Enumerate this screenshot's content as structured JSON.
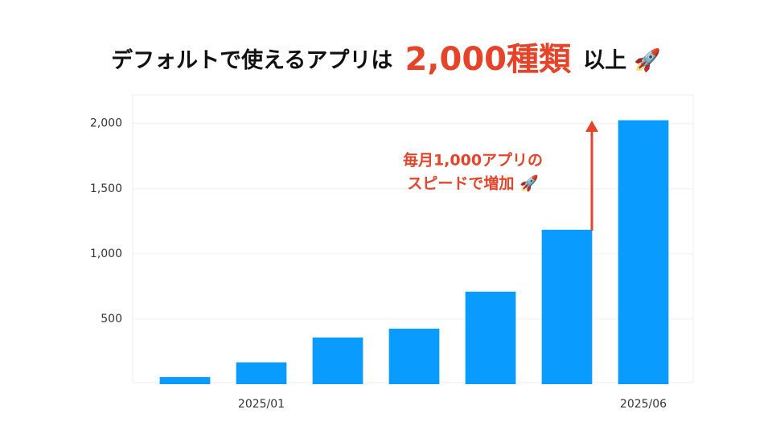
{
  "chart_data": {
    "type": "bar",
    "title": [
      "デフォルトで使えるアプリは",
      "2,000種類",
      "以上",
      "🚀"
    ],
    "annotation": [
      "毎月1,000アプリの",
      "スピードで増加 🚀"
    ],
    "categories": [
      null,
      "2025/01",
      null,
      null,
      null,
      null,
      "2025/06"
    ],
    "values": [
      55,
      167,
      358,
      426,
      710,
      1185,
      2025
    ],
    "color": "#0a9bff",
    "ylim": [
      0,
      2220
    ],
    "yticks": [
      {
        "value": 500,
        "label": "500"
      },
      {
        "value": 1000,
        "label": "1,000"
      },
      {
        "value": 1500,
        "label": "1,500"
      },
      {
        "value": 2000,
        "label": "2,000"
      }
    ],
    "grid": true
  }
}
